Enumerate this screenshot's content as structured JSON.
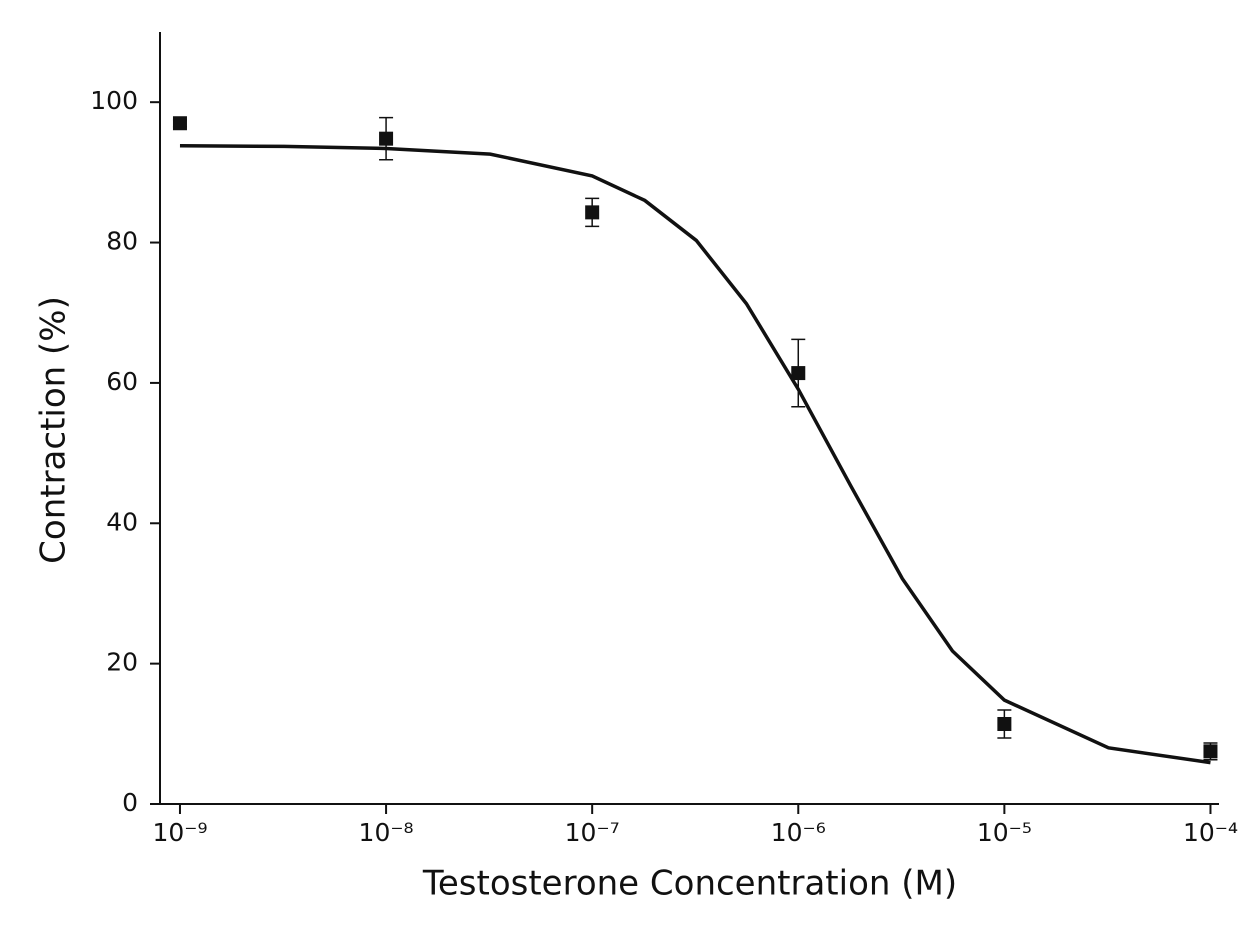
{
  "chart_data": {
    "type": "scatter",
    "x_label": "Testosterone Concentration (M)",
    "y_label": "Contraction (%)",
    "log_x": true,
    "color": "#111111",
    "x": [
      1e-09,
      1e-08,
      1e-07,
      1e-06,
      1e-05,
      0.0001
    ],
    "values": [
      97.0,
      94.8,
      84.3,
      61.4,
      11.4,
      7.5
    ],
    "errors": [
      0.5,
      3.0,
      2.0,
      4.8,
      2.0,
      1.2
    ],
    "fit_x": [
      1e-09,
      3.2e-09,
      1e-08,
      3.2e-08,
      1e-07,
      1.8e-07,
      3.2e-07,
      5.6e-07,
      1e-06,
      1.8e-06,
      3.2e-06,
      5.6e-06,
      1e-05,
      3.2e-05,
      0.0001
    ],
    "fit_values": [
      93.8,
      93.7,
      93.4,
      92.6,
      89.5,
      86.0,
      80.3,
      71.3,
      59.1,
      45.3,
      32.1,
      21.8,
      14.8,
      8.0,
      5.9
    ],
    "xlim": [
      8e-10,
      0.00011
    ],
    "ylim": [
      0,
      110
    ],
    "xticks": [
      {
        "value": 1e-09,
        "label": "10⁻⁹"
      },
      {
        "value": 1e-08,
        "label": "10⁻⁸"
      },
      {
        "value": 1e-07,
        "label": "10⁻⁷"
      },
      {
        "value": 1e-06,
        "label": "10⁻⁶"
      },
      {
        "value": 1e-05,
        "label": "10⁻⁵"
      },
      {
        "value": 0.0001,
        "label": "10⁻⁴"
      }
    ],
    "yticks": [
      0,
      20,
      40,
      60,
      80,
      100
    ]
  }
}
